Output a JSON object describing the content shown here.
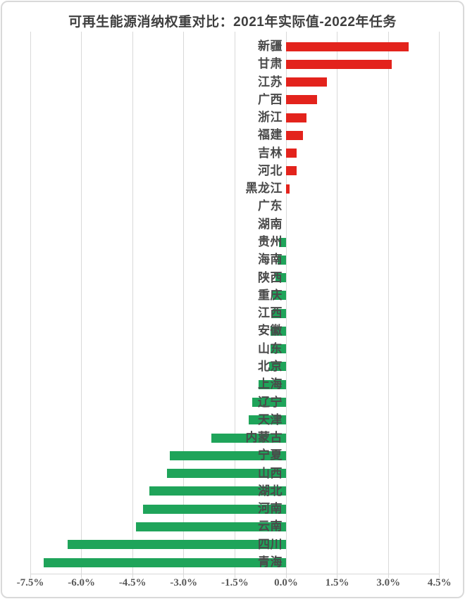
{
  "page": {
    "title": "可再生能源消纳权重对比：2021年实际值-2022年任务"
  },
  "chart_data": {
    "type": "bar",
    "orientation": "horizontal",
    "title": "可再生能源消纳权重对比：2021年实际值-2022年任务",
    "xlabel": "",
    "ylabel": "",
    "unit": "%",
    "xlim": [
      -7.5,
      4.5
    ],
    "grid": true,
    "legend": false,
    "positive_color": "#e3231c",
    "negative_color": "#1fa45a",
    "x_ticks": [
      {
        "value": -7.5,
        "label": "-7.5%"
      },
      {
        "value": -6.0,
        "label": "-6.0%"
      },
      {
        "value": -4.5,
        "label": "-4.5%"
      },
      {
        "value": -3.0,
        "label": "-3.0%"
      },
      {
        "value": -1.5,
        "label": "-1.5%"
      },
      {
        "value": 0.0,
        "label": "0.0%"
      },
      {
        "value": 1.5,
        "label": "1.5%"
      },
      {
        "value": 3.0,
        "label": "3.0%"
      },
      {
        "value": 4.5,
        "label": "4.5%"
      }
    ],
    "categories": [
      "新疆",
      "甘肃",
      "江苏",
      "广西",
      "浙江",
      "福建",
      "吉林",
      "河北",
      "黑龙江",
      "广东",
      "湖南",
      "贵州",
      "海南",
      "陕西",
      "重庆",
      "江西",
      "安徽",
      "山东",
      "北京",
      "上海",
      "辽宁",
      "天津",
      "内蒙古",
      "宁夏",
      "山西",
      "湖北",
      "河南",
      "云南",
      "四川",
      "青海"
    ],
    "values": [
      3.6,
      3.1,
      1.2,
      0.9,
      0.6,
      0.5,
      0.3,
      0.3,
      0.1,
      0.0,
      0.0,
      -0.2,
      -0.25,
      -0.3,
      -0.4,
      -0.4,
      -0.45,
      -0.45,
      -0.5,
      -0.8,
      -1.0,
      -1.1,
      -2.2,
      -3.4,
      -3.5,
      -4.0,
      -4.2,
      -4.4,
      -6.4,
      -7.1
    ]
  }
}
